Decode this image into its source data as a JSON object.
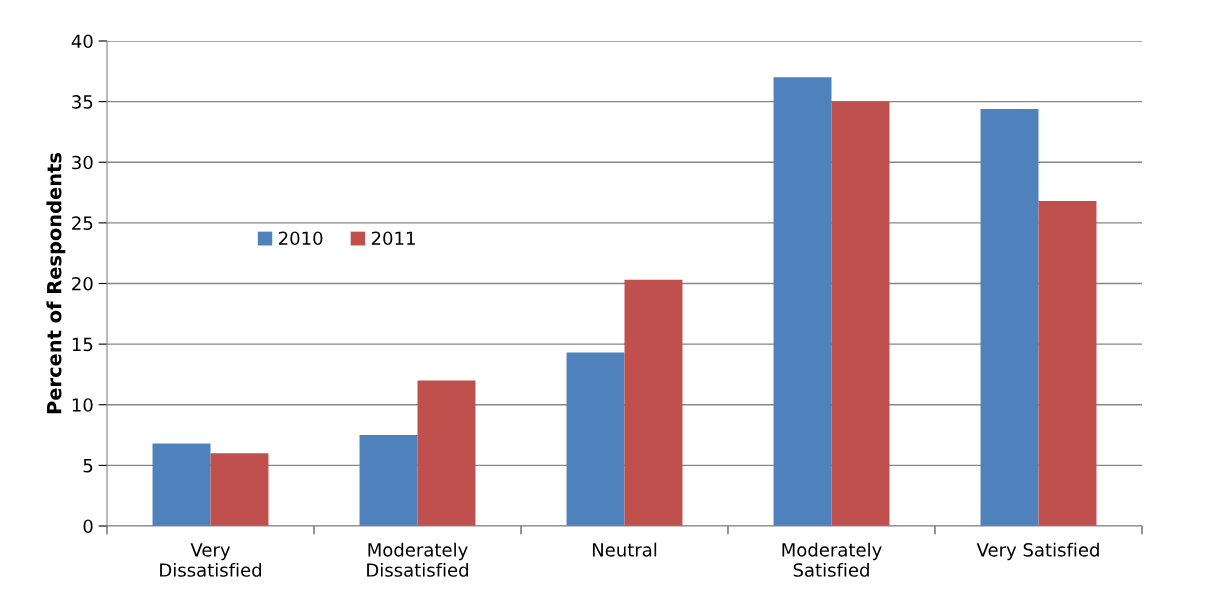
{
  "chart_data": {
    "type": "bar",
    "ylabel": "Percent of Respondents",
    "categories": [
      "Very Dissatisfied",
      "Moderately Dissatisfied",
      "Neutral",
      "Moderately Satisfied",
      "Very Satisfied"
    ],
    "series": [
      {
        "name": "2010",
        "color": "#4f81bd",
        "values": [
          6.8,
          7.5,
          14.3,
          37,
          34.4
        ]
      },
      {
        "name": "2011",
        "color": "#c0504d",
        "values": [
          6.0,
          12.0,
          20.3,
          35,
          26.8
        ]
      }
    ],
    "ylim": [
      0,
      40
    ],
    "yticks": [
      0,
      5,
      10,
      15,
      20,
      25,
      30,
      35,
      40
    ],
    "grid": "y",
    "legend": "left"
  }
}
